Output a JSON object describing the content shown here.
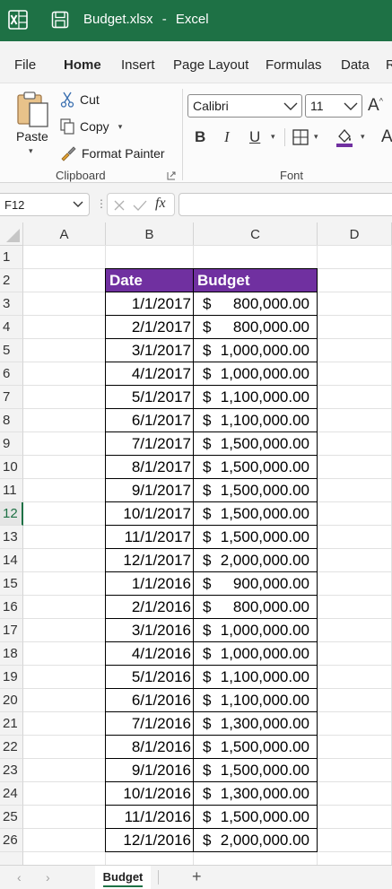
{
  "window": {
    "filename": "Budget.xlsx",
    "separator": "-",
    "app": "Excel",
    "brand_color": "#1e7145"
  },
  "menu": {
    "tabs": [
      "File",
      "Home",
      "Insert",
      "Page Layout",
      "Formulas",
      "Data",
      "R"
    ],
    "active": "Home"
  },
  "ribbon": {
    "clipboard": {
      "paste": "Paste",
      "cut": "Cut",
      "copy": "Copy",
      "format_painter": "Format Painter",
      "label": "Clipboard"
    },
    "font": {
      "family": "Calibri",
      "size": "11",
      "grow_glyph": "A",
      "bold": "B",
      "italic": "I",
      "underline": "U",
      "label": "Font",
      "fill_color": "#7030a0"
    }
  },
  "formula_bar": {
    "name_box": "F12",
    "dots": "⋮",
    "fx": "fx",
    "formula": ""
  },
  "sheet": {
    "columns": [
      "A",
      "B",
      "C",
      "D"
    ],
    "rows": [
      "1",
      "2",
      "3",
      "4",
      "5",
      "6",
      "7",
      "8",
      "9",
      "10",
      "11",
      "12",
      "13",
      "14",
      "15",
      "16",
      "17",
      "18",
      "19",
      "20",
      "21",
      "22",
      "23",
      "24",
      "25",
      "26"
    ],
    "selected_row": "12",
    "header_fill": "#7030a0",
    "table_header": {
      "date": "Date",
      "budget": "Budget"
    },
    "records": [
      {
        "date": "1/1/2017",
        "budget": "800,000.00"
      },
      {
        "date": "2/1/2017",
        "budget": "800,000.00"
      },
      {
        "date": "3/1/2017",
        "budget": "1,000,000.00"
      },
      {
        "date": "4/1/2017",
        "budget": "1,000,000.00"
      },
      {
        "date": "5/1/2017",
        "budget": "1,100,000.00"
      },
      {
        "date": "6/1/2017",
        "budget": "1,100,000.00"
      },
      {
        "date": "7/1/2017",
        "budget": "1,500,000.00"
      },
      {
        "date": "8/1/2017",
        "budget": "1,500,000.00"
      },
      {
        "date": "9/1/2017",
        "budget": "1,500,000.00"
      },
      {
        "date": "10/1/2017",
        "budget": "1,500,000.00"
      },
      {
        "date": "11/1/2017",
        "budget": "1,500,000.00"
      },
      {
        "date": "12/1/2017",
        "budget": "2,000,000.00"
      },
      {
        "date": "1/1/2016",
        "budget": "900,000.00"
      },
      {
        "date": "2/1/2016",
        "budget": "800,000.00"
      },
      {
        "date": "3/1/2016",
        "budget": "1,000,000.00"
      },
      {
        "date": "4/1/2016",
        "budget": "1,000,000.00"
      },
      {
        "date": "5/1/2016",
        "budget": "1,100,000.00"
      },
      {
        "date": "6/1/2016",
        "budget": "1,100,000.00"
      },
      {
        "date": "7/1/2016",
        "budget": "1,300,000.00"
      },
      {
        "date": "8/1/2016",
        "budget": "1,500,000.00"
      },
      {
        "date": "9/1/2016",
        "budget": "1,500,000.00"
      },
      {
        "date": "10/1/2016",
        "budget": "1,300,000.00"
      },
      {
        "date": "11/1/2016",
        "budget": "1,500,000.00"
      },
      {
        "date": "12/1/2016",
        "budget": "2,000,000.00"
      }
    ],
    "currency_symbol": "$"
  },
  "sheet_tabs": {
    "tabs": [
      "Budget"
    ],
    "active": "Budget",
    "add": "+"
  }
}
